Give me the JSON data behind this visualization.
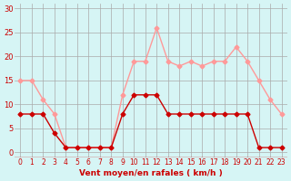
{
  "hours": [
    0,
    1,
    2,
    3,
    4,
    5,
    6,
    7,
    8,
    9,
    10,
    11,
    12,
    13,
    14,
    15,
    16,
    17,
    18,
    19,
    20,
    21,
    22,
    23
  ],
  "vent_moyen": [
    8,
    8,
    8,
    4,
    1,
    1,
    1,
    1,
    1,
    8,
    12,
    12,
    12,
    8,
    8,
    8,
    8,
    8,
    8,
    8,
    8,
    1,
    1,
    1
  ],
  "rafales": [
    15,
    15,
    11,
    8,
    1,
    1,
    1,
    1,
    1,
    12,
    19,
    19,
    26,
    19,
    18,
    19,
    18,
    19,
    19,
    22,
    19,
    15,
    11,
    8
  ],
  "bg_color": "#d6f5f5",
  "grid_color": "#aaaaaa",
  "line_dark": "#cc0000",
  "line_light": "#ff9999",
  "marker_dark": "#cc0000",
  "marker_light": "#ff9999",
  "xlabel": "Vent moyen/en rafales ( km/h )",
  "xlabel_color": "#cc0000",
  "yticks": [
    0,
    5,
    10,
    15,
    20,
    25,
    30
  ],
  "ylim": [
    -1,
    31
  ],
  "xlim": [
    -0.5,
    23.5
  ]
}
